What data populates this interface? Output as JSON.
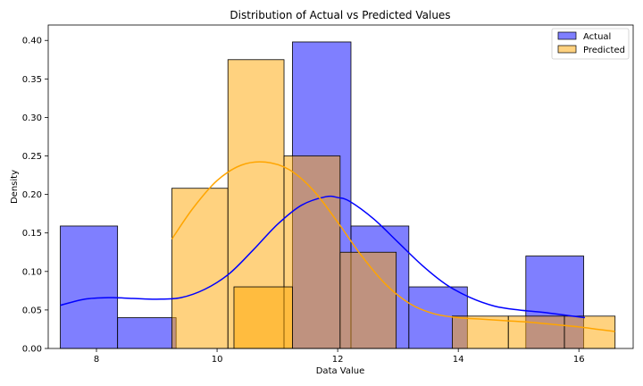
{
  "chart_data": {
    "type": "histogram",
    "title": "Distribution of Actual vs Predicted Values",
    "xlabel": "Data Value",
    "ylabel": "Density",
    "xlim": [
      7.2,
      16.9
    ],
    "ylim": [
      0,
      0.42
    ],
    "xticks": [
      8,
      10,
      12,
      14,
      16
    ],
    "yticks": [
      0.0,
      0.05,
      0.1,
      0.15,
      0.2,
      0.25,
      0.3,
      0.35,
      0.4
    ],
    "legend_position": "top-right",
    "grid": false,
    "series": [
      {
        "name": "Actual",
        "color": "#0000ff",
        "bins": [
          {
            "x0": 7.4,
            "x1": 8.35,
            "density": 0.159
          },
          {
            "x0": 8.35,
            "x1": 9.32,
            "density": 0.04
          },
          {
            "x0": 9.32,
            "x1": 10.28,
            "density": 0.0
          },
          {
            "x0": 10.28,
            "x1": 11.25,
            "density": 0.0
          },
          {
            "x0": 11.25,
            "x1": 12.22,
            "density": 0.398
          },
          {
            "x0": 12.22,
            "x1": 13.18,
            "density": 0.159
          },
          {
            "x0": 13.18,
            "x1": 14.15,
            "density": 0.08
          },
          {
            "x0": 14.15,
            "x1": 15.12,
            "density": 0.0
          },
          {
            "x0": 15.12,
            "x1": 16.08,
            "density": 0.12
          }
        ],
        "kde": {
          "x": [
            7.4,
            7.8,
            8.2,
            8.6,
            9.0,
            9.4,
            9.8,
            10.2,
            10.6,
            11.0,
            11.4,
            11.8,
            12.0,
            12.2,
            12.6,
            13.0,
            13.4,
            13.8,
            14.2,
            14.6,
            15.0,
            15.4,
            15.8,
            16.1
          ],
          "y": [
            0.056,
            0.064,
            0.066,
            0.065,
            0.064,
            0.066,
            0.077,
            0.097,
            0.128,
            0.161,
            0.186,
            0.197,
            0.196,
            0.191,
            0.168,
            0.138,
            0.108,
            0.083,
            0.066,
            0.055,
            0.05,
            0.047,
            0.043,
            0.04
          ]
        }
      },
      {
        "name": "Predicted",
        "color": "#ffa500",
        "bins": [
          {
            "x0": 9.25,
            "x1": 10.18,
            "density": 0.208
          },
          {
            "x0": 10.18,
            "x1": 11.11,
            "density": 0.375
          },
          {
            "x0": 11.11,
            "x1": 12.04,
            "density": 0.25
          },
          {
            "x0": 12.04,
            "x1": 12.97,
            "density": 0.125
          },
          {
            "x0": 12.97,
            "x1": 13.9,
            "density": 0.0
          },
          {
            "x0": 13.9,
            "x1": 14.83,
            "density": 0.042
          },
          {
            "x0": 14.83,
            "x1": 15.76,
            "density": 0.042
          },
          {
            "x0": 15.76,
            "x1": 16.6,
            "density": 0.042
          }
        ],
        "extra_bins": [
          {
            "x0": 10.28,
            "x1": 11.25,
            "density": 0.08
          }
        ],
        "kde": {
          "x": [
            9.25,
            9.6,
            10.0,
            10.4,
            10.8,
            11.2,
            11.6,
            12.0,
            12.4,
            12.8,
            13.2,
            13.6,
            14.0,
            14.4,
            14.8,
            15.2,
            15.6,
            16.0,
            16.3,
            16.6
          ],
          "y": [
            0.142,
            0.182,
            0.218,
            0.238,
            0.242,
            0.232,
            0.205,
            0.164,
            0.12,
            0.083,
            0.058,
            0.045,
            0.04,
            0.038,
            0.036,
            0.034,
            0.031,
            0.028,
            0.025,
            0.022
          ]
        }
      }
    ]
  }
}
